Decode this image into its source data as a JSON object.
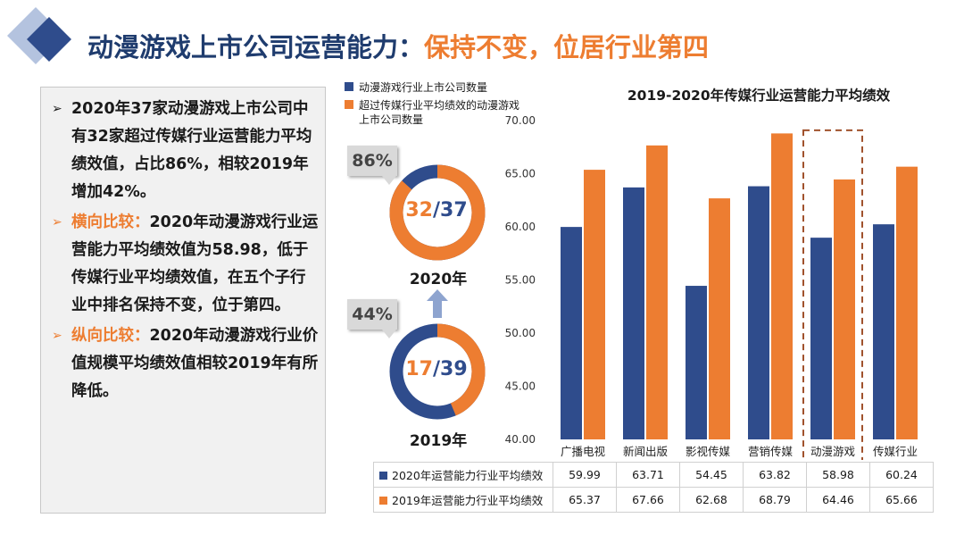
{
  "header": {
    "title_main": "动漫游戏上市公司运营能力：",
    "title_highlight": "保持不变，位居行业第四"
  },
  "bullets": [
    {
      "marker": "➢",
      "lead": "",
      "text": "2020年37家动漫游戏上市公司中有32家超过传媒行业运营能力平均绩效值，占比86%，相较2019年增加42%。"
    },
    {
      "marker": "➢",
      "lead": "横向比较：",
      "text": "2020年动漫游戏行业运营能力平均绩效值为58.98，低于传媒行业平均绩效值，在五个子行业中排名保持不变，位于第四。"
    },
    {
      "marker": "➢",
      "lead": "纵向比较：",
      "text": "2020年动漫游戏行业价值规模平均绩效值相较2019年有所降低。"
    }
  ],
  "donuts": {
    "legend": [
      {
        "label": "动漫游戏行业上市公司数量",
        "color": "#2f4c8c"
      },
      {
        "label": "超过传媒行业平均绩效的动漫游戏上市公司数量",
        "color": "#ed7d31"
      }
    ],
    "items": [
      {
        "year": "2020年",
        "part": "32",
        "total": "37",
        "pct": "86%",
        "fraction": 0.865
      },
      {
        "year": "2019年",
        "part": "17",
        "total": "39",
        "pct": "44%",
        "fraction": 0.436
      }
    ],
    "arrow": "up-arrow-icon"
  },
  "chart_data": {
    "type": "bar",
    "title": "2019-2020年传媒行业运营能力平均绩效",
    "categories": [
      "广播电视",
      "新闻出版",
      "影视传媒",
      "营销传媒",
      "动漫游戏",
      "传媒行业"
    ],
    "series": [
      {
        "name": "2020年运营能力行业平均绩效",
        "color": "#2f4c8c",
        "values": [
          59.99,
          63.71,
          54.45,
          63.82,
          58.98,
          60.24
        ]
      },
      {
        "name": "2019年运营能力行业平均绩效",
        "color": "#ed7d31",
        "values": [
          65.37,
          67.66,
          62.68,
          68.79,
          64.46,
          65.66
        ]
      }
    ],
    "ylim": [
      40,
      70
    ],
    "yticks": [
      "40.00",
      "45.00",
      "50.00",
      "55.00",
      "60.00",
      "65.00",
      "70.00"
    ],
    "highlight_category": "动漫游戏",
    "grid": false,
    "legend": "data-table"
  }
}
